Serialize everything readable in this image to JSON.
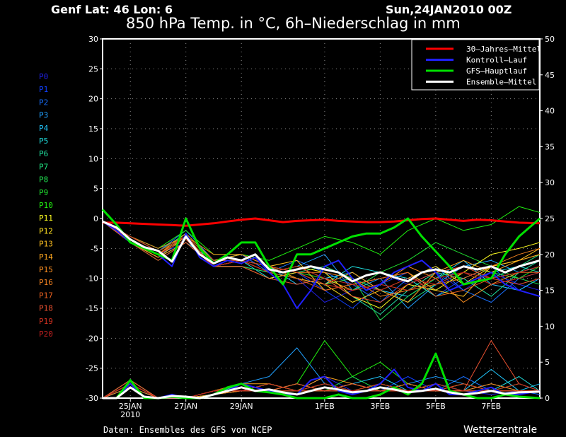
{
  "header": {
    "location": "Genf  Lat: 46 Lon: 6",
    "run": "Sun,24JAN2010 00Z",
    "title": "850 hPa Temp. in °C, 6h–Niederschlag in mm"
  },
  "footer": {
    "source": "Daten: Ensembles des GFS von NCEP",
    "brand": "Wetterzentrale"
  },
  "chart_data": {
    "type": "line",
    "title": "850 hPa Temp. in °C, 6h-Niederschlag in mm",
    "x_unit": "days since 24JAN2010 00Z",
    "xlim": [
      0,
      15.75
    ],
    "ylim_left": [
      -30,
      30
    ],
    "yticks_left": [
      30,
      25,
      20,
      15,
      10,
      5,
      0,
      -5,
      -10,
      -15,
      -20,
      -25,
      -30
    ],
    "ylim_right": [
      0,
      50
    ],
    "yticks_right": [
      50,
      45,
      40,
      35,
      30,
      25,
      20,
      15,
      10,
      5,
      0
    ],
    "xticks": [
      {
        "day": 1,
        "label": "25JAN",
        "sub": "2010"
      },
      {
        "day": 3,
        "label": "27JAN",
        "sub": ""
      },
      {
        "day": 5,
        "label": "29JAN",
        "sub": ""
      },
      {
        "day": 8,
        "label": "1FEB",
        "sub": ""
      },
      {
        "day": 10,
        "label": "3FEB",
        "sub": ""
      },
      {
        "day": 12,
        "label": "5FEB",
        "sub": ""
      },
      {
        "day": 14,
        "label": "7FEB",
        "sub": ""
      }
    ],
    "grid": true,
    "legend_position": "top-right",
    "legend": [
      {
        "label": "30–Jahres–Mittel",
        "color": "#ff0000"
      },
      {
        "label": "Kontroll–Lauf",
        "color": "#2020ff"
      },
      {
        "label": "GFS–Hauptlauf",
        "color": "#00e000"
      },
      {
        "label": "Ensemble–Mittel",
        "color": "#ffffff"
      }
    ],
    "x_12h": [
      0,
      0.5,
      1,
      1.5,
      2,
      2.5,
      3,
      3.5,
      4,
      4.5,
      5,
      5.5,
      6,
      6.5,
      7,
      7.5,
      8,
      8.5,
      9,
      9.5,
      10,
      10.5,
      11,
      11.5,
      12,
      12.5,
      13,
      13.5,
      14,
      14.5,
      15,
      15.75
    ],
    "climate_mean": [
      -0.7,
      -0.7,
      -0.8,
      -0.9,
      -1.0,
      -1.1,
      -1.2,
      -1.0,
      -0.8,
      -0.5,
      -0.2,
      0.0,
      -0.3,
      -0.6,
      -0.4,
      -0.3,
      -0.2,
      -0.4,
      -0.5,
      -0.6,
      -0.6,
      -0.5,
      -0.3,
      -0.1,
      0.0,
      -0.2,
      -0.4,
      -0.2,
      -0.3,
      -0.5,
      -0.7,
      -0.8
    ],
    "ensemble_mean": [
      -0.5,
      -1.5,
      -3.5,
      -4.8,
      -5.4,
      -7.2,
      -3.0,
      -6.0,
      -7.5,
      -6.5,
      -7.0,
      -6.0,
      -8.5,
      -9.0,
      -8.5,
      -8.0,
      -8.5,
      -9.0,
      -10.5,
      -9.5,
      -9.0,
      -9.8,
      -10.5,
      -9.0,
      -8.5,
      -9.0,
      -8.0,
      -8.5,
      -8.0,
      -9.0,
      -8.0,
      -7.0
    ],
    "control_run": [
      -0.5,
      -2.0,
      -4.0,
      -5.0,
      -6.0,
      -8.0,
      -2.5,
      -6.5,
      -8.0,
      -7.0,
      -7.5,
      -6.5,
      -9.0,
      -11.0,
      -15.0,
      -12.0,
      -8.0,
      -7.0,
      -10.0,
      -12.0,
      -11.0,
      -9.0,
      -8.0,
      -7.0,
      -9.0,
      -12.0,
      -11.0,
      -10.0,
      -9.0,
      -11.0,
      -12.0,
      -13.0
    ],
    "gfs_main_run": [
      1.5,
      -1.0,
      -4.0,
      -5.0,
      -6.0,
      -7.0,
      0.0,
      -5.0,
      -7.5,
      -6.0,
      -4.0,
      -4.0,
      -8.0,
      -11.0,
      -6.0,
      -6.0,
      -5.0,
      -4.0,
      -3.0,
      -2.5,
      -2.5,
      -1.5,
      0.0,
      -3.0,
      -5.5,
      -8.0,
      -11.0,
      -10.5,
      -10.0,
      -6.0,
      -3.0,
      0.0
    ],
    "precip_x_12h": [
      0,
      0.5,
      1,
      1.5,
      2,
      2.5,
      3,
      3.5,
      4,
      4.5,
      5,
      5.5,
      6,
      6.5,
      7,
      7.5,
      8,
      8.5,
      9,
      9.5,
      10,
      10.5,
      11,
      11.5,
      12,
      12.5,
      13,
      13.5,
      14,
      14.5,
      15,
      15.75
    ],
    "precip_ensemble_mean": [
      0,
      0,
      1.5,
      0.2,
      0,
      0.3,
      0.2,
      0,
      0.5,
      1.0,
      1.5,
      1.0,
      1.2,
      0.8,
      0.5,
      1.0,
      1.5,
      1.2,
      0.8,
      1.0,
      1.5,
      1.2,
      0.8,
      1.0,
      1.3,
      0.8,
      0.5,
      0.7,
      1.0,
      0.6,
      0.8,
      0.9
    ],
    "precip_control_run": [
      0,
      0,
      2.0,
      0,
      0,
      0.5,
      0,
      0,
      0.5,
      1.0,
      2.0,
      1.5,
      1.0,
      0.5,
      0.5,
      2.5,
      3.0,
      1.0,
      0.5,
      1.0,
      2.0,
      4.0,
      1.5,
      1.0,
      2.0,
      0.5,
      0.5,
      1.0,
      1.5,
      0.5,
      0.5,
      1.0
    ],
    "precip_gfs_main_run": [
      0,
      0,
      2.5,
      0,
      0,
      0.2,
      0,
      0,
      0.5,
      1.5,
      2.0,
      1.0,
      0.8,
      0.5,
      0,
      0,
      0,
      0.5,
      0,
      0,
      0.5,
      1.5,
      0.5,
      2.0,
      6.2,
      1.0,
      0.5,
      0,
      0,
      0.5,
      0.2,
      0
    ],
    "members_x": [
      0,
      1,
      2,
      3,
      4,
      5,
      6,
      7,
      8,
      9,
      10,
      11,
      12,
      13,
      14,
      15,
      15.75
    ],
    "members": [
      {
        "name": "P0",
        "color": "#2020e0",
        "temp": [
          -0.5,
          -3.5,
          -6,
          -3,
          -7,
          -7,
          -9,
          -10,
          -14,
          -12,
          -9,
          -11,
          -9,
          -12,
          -9,
          -11,
          -12
        ],
        "precip": [
          0,
          2,
          0,
          0,
          1,
          1,
          2,
          1,
          3,
          1,
          2,
          1,
          2,
          1,
          0.5,
          1,
          1
        ]
      },
      {
        "name": "P1",
        "color": "#1040ff",
        "temp": [
          -0.5,
          -4,
          -6,
          -4,
          -8,
          -7,
          -8,
          -9,
          -12,
          -15,
          -11,
          -9,
          -13,
          -10,
          -8,
          -12,
          -10
        ],
        "precip": [
          0,
          2.5,
          0,
          0,
          0.5,
          1,
          1,
          2,
          1,
          2,
          1,
          3,
          1,
          1,
          2,
          1,
          1
        ]
      },
      {
        "name": "P2",
        "color": "#1870ff",
        "temp": [
          -0.5,
          -3,
          -5.5,
          -2,
          -7,
          -6,
          -9,
          -7,
          -9,
          -11,
          -14,
          -10,
          -8,
          -12,
          -14,
          -10,
          -9
        ],
        "precip": [
          0,
          1.5,
          0,
          0,
          1,
          2,
          1,
          1,
          2,
          1,
          1,
          2,
          1,
          3,
          1,
          1,
          0.5
        ]
      },
      {
        "name": "P3",
        "color": "#20a0ff",
        "temp": [
          -0.5,
          -3.5,
          -6,
          -3,
          -8,
          -8,
          -9,
          -8,
          -6,
          -12,
          -10,
          -15,
          -11,
          -8,
          -7,
          -9,
          -8
        ],
        "precip": [
          0,
          2,
          0,
          0,
          0.5,
          2,
          3,
          7,
          2,
          1,
          1,
          2,
          3,
          2,
          1,
          1,
          1
        ]
      },
      {
        "name": "P4",
        "color": "#20c8ff",
        "temp": [
          -0.5,
          -4,
          -6.5,
          -4,
          -7,
          -6,
          -8,
          -11,
          -10,
          -9,
          -12,
          -13,
          -10,
          -7,
          -11,
          -12,
          -10
        ],
        "precip": [
          0,
          2,
          0,
          0,
          1,
          1,
          2,
          1,
          1,
          2,
          3,
          1,
          2,
          1,
          4,
          1,
          2
        ]
      },
      {
        "name": "P5",
        "color": "#20e0e0",
        "temp": [
          -0.5,
          -3,
          -5,
          -3,
          -7,
          -7,
          -10,
          -9,
          -11,
          -8,
          -9,
          -10,
          -13,
          -11,
          -9,
          -8,
          -9
        ],
        "precip": [
          0,
          1.5,
          0,
          0,
          1,
          1,
          1,
          2,
          1,
          1,
          2,
          1,
          1,
          2,
          1,
          3,
          1
        ]
      },
      {
        "name": "P6",
        "color": "#20e0a0",
        "temp": [
          -0.5,
          -3.5,
          -6,
          -3.5,
          -8,
          -7,
          -9,
          -8,
          -10,
          -13,
          -16,
          -12,
          -9,
          -10,
          -13,
          -9,
          -7
        ],
        "precip": [
          0,
          2,
          0,
          0,
          0.5,
          2,
          1,
          1,
          2,
          1,
          1,
          2,
          1,
          1,
          1,
          2,
          1
        ]
      },
      {
        "name": "P7",
        "color": "#20e080",
        "temp": [
          -0.5,
          -3,
          -5.5,
          -2.5,
          -7,
          -6,
          -8,
          -9,
          -8,
          -10,
          -12,
          -14,
          -11,
          -9,
          -10,
          -8,
          -6
        ],
        "precip": [
          0,
          2,
          0,
          0,
          1,
          1,
          2,
          1,
          1,
          2,
          1,
          1,
          2,
          1,
          1,
          1,
          1
        ]
      },
      {
        "name": "P8",
        "color": "#20e050",
        "temp": [
          -0.5,
          -4,
          -7,
          -4,
          -8,
          -8,
          -9,
          -10,
          -11,
          -10,
          -17,
          -13,
          -10,
          -8,
          -9,
          -10,
          -11
        ],
        "precip": [
          0,
          2.5,
          0,
          0,
          1,
          2,
          1,
          2,
          1,
          3,
          1,
          2,
          1,
          1,
          1,
          2,
          1
        ]
      },
      {
        "name": "P9",
        "color": "#20e030",
        "temp": [
          -0.5,
          -3.5,
          -6,
          -3,
          -7,
          -7,
          -8,
          -9,
          -10,
          -12,
          -9,
          -7,
          -4,
          -6,
          -8,
          -10,
          -8
        ],
        "precip": [
          0,
          2,
          0,
          0,
          1,
          1,
          1,
          1,
          2,
          1,
          2,
          1,
          1,
          2,
          1,
          1,
          1
        ]
      },
      {
        "name": "P10",
        "color": "#20f010",
        "temp": [
          -0.5,
          -3,
          -5,
          -2,
          -6,
          -6,
          -7,
          -5,
          -3,
          -4,
          -6,
          -2,
          0,
          -2,
          -1,
          2,
          1
        ],
        "precip": [
          0,
          2,
          0,
          0,
          1,
          2,
          1,
          2,
          8,
          3,
          5,
          2,
          1,
          1,
          1,
          1,
          1
        ]
      },
      {
        "name": "P11",
        "color": "#ffff20",
        "temp": [
          -0.5,
          -3.5,
          -6,
          -3.5,
          -8,
          -7,
          -9,
          -8,
          -9,
          -13,
          -15,
          -11,
          -12,
          -9,
          -6,
          -5,
          -4
        ],
        "precip": [
          0,
          2,
          0,
          0,
          0.5,
          1,
          2,
          1,
          1,
          2,
          1,
          2,
          1,
          1,
          2,
          1,
          1
        ]
      },
      {
        "name": "P12",
        "color": "#ffe020",
        "temp": [
          -0.5,
          -4,
          -6.5,
          -3,
          -8,
          -8,
          -10,
          -9,
          -11,
          -14,
          -12,
          -10,
          -8,
          -11,
          -8,
          -7,
          -6
        ],
        "precip": [
          0,
          2.5,
          0,
          0,
          1,
          2,
          1,
          1,
          2,
          1,
          2,
          1,
          1,
          2,
          1,
          1,
          1
        ]
      },
      {
        "name": "P13",
        "color": "#ffc020",
        "temp": [
          -0.5,
          -3,
          -5.5,
          -3,
          -7,
          -7,
          -8,
          -7,
          -12,
          -11,
          -10,
          -9,
          -12,
          -13,
          -8,
          -7,
          -5
        ],
        "precip": [
          0,
          2,
          0,
          0,
          1,
          1,
          1,
          2,
          1,
          1,
          1,
          2,
          1,
          1,
          1,
          2,
          1
        ]
      },
      {
        "name": "P14",
        "color": "#ffa820",
        "temp": [
          -0.5,
          -3.5,
          -6,
          -2.5,
          -7,
          -6,
          -8,
          -10,
          -11,
          -9,
          -12,
          -14,
          -9,
          -7,
          -9,
          -7,
          -6
        ],
        "precip": [
          0,
          2,
          0,
          0,
          1,
          2,
          2,
          1,
          3,
          2,
          1,
          1,
          2,
          1,
          1,
          1,
          1
        ]
      },
      {
        "name": "P15",
        "color": "#ff9020",
        "temp": [
          -0.5,
          -4,
          -6.5,
          -4,
          -8,
          -7,
          -9,
          -8,
          -10,
          -12,
          -11,
          -8,
          -10,
          -14,
          -11,
          -9,
          -8
        ],
        "precip": [
          0,
          2,
          0,
          0,
          0.5,
          1,
          1,
          2,
          1,
          2,
          1,
          1,
          1,
          2,
          1,
          1,
          1
        ]
      },
      {
        "name": "P16",
        "color": "#f08020",
        "temp": [
          -0.5,
          -3,
          -5,
          -3,
          -6,
          -6,
          -8,
          -9,
          -9,
          -10,
          -13,
          -12,
          -11,
          -10,
          -8,
          -6,
          -5
        ],
        "precip": [
          0,
          1.5,
          0,
          0,
          1,
          1,
          2,
          1,
          1,
          1,
          2,
          1,
          1,
          1,
          2,
          1,
          1
        ]
      },
      {
        "name": "P17",
        "color": "#e86020",
        "temp": [
          -0.5,
          -3.5,
          -6,
          -3,
          -8,
          -7,
          -9,
          -10,
          -12,
          -11,
          -10,
          -9,
          -13,
          -12,
          -10,
          -9,
          -9
        ],
        "precip": [
          0,
          2,
          0,
          0,
          1,
          2,
          1,
          1,
          2,
          1,
          1,
          2,
          1,
          1,
          1,
          1,
          1
        ]
      },
      {
        "name": "P18",
        "color": "#e85030",
        "temp": [
          -0.5,
          -4,
          -7,
          -4,
          -8,
          -8,
          -10,
          -11,
          -10,
          -13,
          -14,
          -11,
          -9,
          -8,
          -10,
          -11,
          -10
        ],
        "precip": [
          0,
          2.5,
          0,
          0,
          1,
          1,
          1,
          2,
          1,
          2,
          1,
          1,
          1,
          1,
          8,
          2,
          1
        ]
      },
      {
        "name": "P19",
        "color": "#d03020",
        "temp": [
          -0.5,
          -3,
          -5.5,
          -3,
          -7,
          -7,
          -8,
          -9,
          -11,
          -12,
          -11,
          -12,
          -10,
          -9,
          -11,
          -10,
          -9
        ],
        "precip": [
          0,
          2,
          0,
          0,
          1,
          1,
          2,
          1,
          1,
          1,
          2,
          1,
          1,
          2,
          1,
          1,
          1
        ]
      },
      {
        "name": "P20",
        "color": "#c02020",
        "temp": [
          -0.5,
          -3.5,
          -6,
          -3.5,
          -8,
          -7,
          -9,
          -8,
          -10,
          -11,
          -12,
          -10,
          -11,
          -9,
          -10,
          -9,
          -8
        ],
        "precip": [
          0,
          2,
          0,
          0,
          1,
          1,
          1,
          1,
          2,
          1,
          1,
          1,
          2,
          1,
          1,
          2,
          1
        ]
      }
    ]
  }
}
